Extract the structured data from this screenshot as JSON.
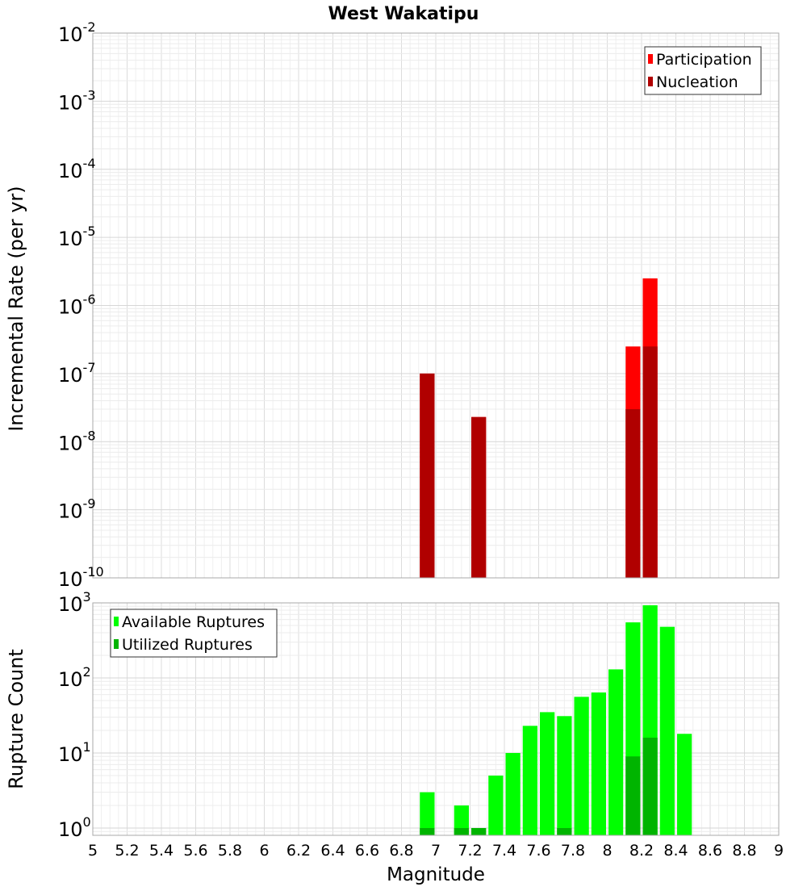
{
  "chart_data": [
    {
      "type": "bar",
      "title": "West Wakatipu",
      "ylabel": "Incremental Rate (per yr)",
      "y_scale": "log",
      "ylim": [
        1e-10,
        0.01
      ],
      "y_tick_exponents": [
        -10,
        -9,
        -8,
        -7,
        -6,
        -5,
        -4,
        -3,
        -2
      ],
      "xlim": [
        5,
        9
      ],
      "bin_width": 0.1,
      "grid": true,
      "legend": {
        "position": "top-right",
        "entries": [
          "Participation",
          "Nucleation"
        ]
      },
      "series": [
        {
          "name": "Participation",
          "color": "#ff0000",
          "points": [
            {
              "x": 6.95,
              "y": 1e-07
            },
            {
              "x": 7.25,
              "y": 2.3e-08
            },
            {
              "x": 8.15,
              "y": 2.5e-07
            },
            {
              "x": 8.25,
              "y": 2.5e-06
            }
          ]
        },
        {
          "name": "Nucleation",
          "color": "#b00000",
          "points": [
            {
              "x": 6.95,
              "y": 1e-07
            },
            {
              "x": 7.25,
              "y": 2.3e-08
            },
            {
              "x": 8.15,
              "y": 3e-08
            },
            {
              "x": 8.25,
              "y": 2.5e-07
            }
          ]
        }
      ]
    },
    {
      "type": "bar",
      "xlabel": "Magnitude",
      "ylabel": "Rupture Count",
      "y_scale": "log",
      "ylim": [
        0.8,
        1000
      ],
      "y_tick_exponents": [
        0,
        1,
        2,
        3
      ],
      "xlim": [
        5,
        9
      ],
      "x_ticks": [
        "5",
        "5.2",
        "5.4",
        "5.6",
        "5.8",
        "6",
        "6.2",
        "6.4",
        "6.6",
        "6.8",
        "7",
        "7.2",
        "7.4",
        "7.6",
        "7.8",
        "8",
        "8.2",
        "8.4",
        "8.6",
        "8.8",
        "9"
      ],
      "bin_width": 0.1,
      "grid": true,
      "legend": {
        "position": "top-left",
        "entries": [
          "Available Ruptures",
          "Utilized Ruptures"
        ]
      },
      "series": [
        {
          "name": "Available Ruptures",
          "color": "#00ff00",
          "points": [
            {
              "x": 6.95,
              "y": 3
            },
            {
              "x": 7.15,
              "y": 2
            },
            {
              "x": 7.25,
              "y": 1
            },
            {
              "x": 7.35,
              "y": 5
            },
            {
              "x": 7.45,
              "y": 10
            },
            {
              "x": 7.55,
              "y": 23
            },
            {
              "x": 7.65,
              "y": 35
            },
            {
              "x": 7.75,
              "y": 31
            },
            {
              "x": 7.85,
              "y": 56
            },
            {
              "x": 7.95,
              "y": 64
            },
            {
              "x": 8.05,
              "y": 130
            },
            {
              "x": 8.15,
              "y": 550
            },
            {
              "x": 8.25,
              "y": 930
            },
            {
              "x": 8.35,
              "y": 480
            },
            {
              "x": 8.45,
              "y": 18
            }
          ]
        },
        {
          "name": "Utilized Ruptures",
          "color": "#00b400",
          "points": [
            {
              "x": 6.95,
              "y": 1
            },
            {
              "x": 7.15,
              "y": 1
            },
            {
              "x": 7.25,
              "y": 1
            },
            {
              "x": 7.75,
              "y": 1
            },
            {
              "x": 8.15,
              "y": 9
            },
            {
              "x": 8.25,
              "y": 16
            }
          ]
        }
      ]
    }
  ]
}
